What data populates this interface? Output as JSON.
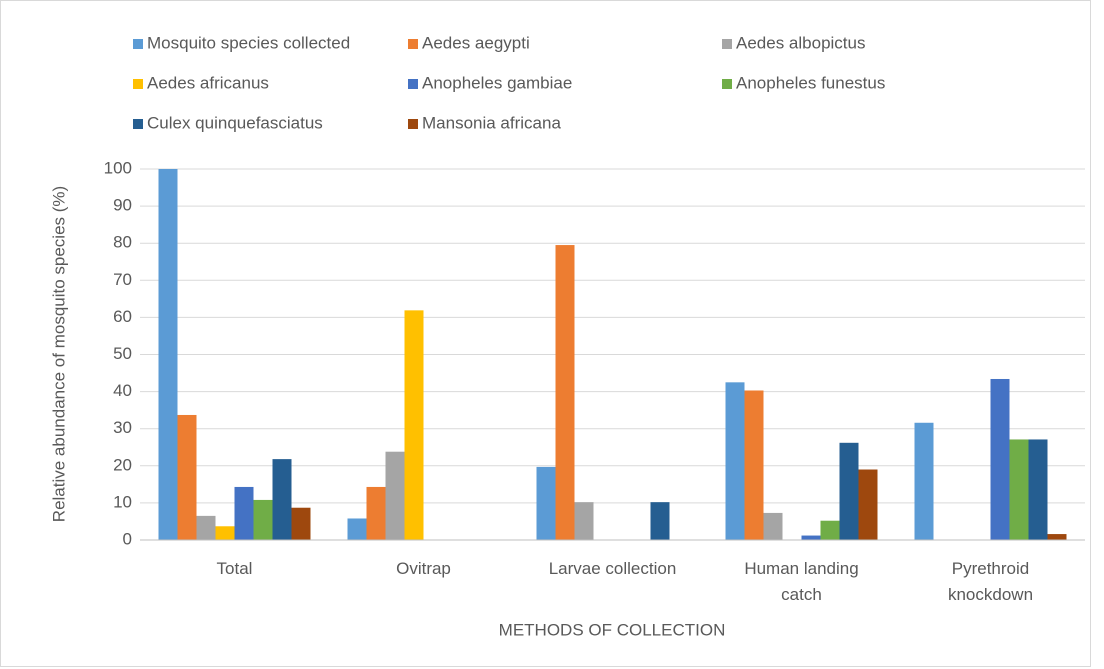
{
  "chart_data": {
    "type": "bar",
    "x_label": "METHODS OF COLLECTION",
    "y_label": "Relative abundance of mosquito species (%)",
    "categories": [
      "Total",
      "Ovitrap",
      "Larvae collection",
      "Human landing\ncatch",
      "Pyrethroid\nknockdown"
    ],
    "series": [
      {
        "name": "Mosquito species collected",
        "color": "#5b9bd5",
        "values": [
          100,
          5.8,
          19.7,
          42.5,
          31.6
        ]
      },
      {
        "name": "Aedes aegypti",
        "color": "#ed7d31",
        "values": [
          33.7,
          14.3,
          79.5,
          40.3,
          0
        ]
      },
      {
        "name": "Aedes albopictus",
        "color": "#a5a5a5",
        "values": [
          6.5,
          23.8,
          10.2,
          7.3,
          0
        ]
      },
      {
        "name": "Aedes africanus",
        "color": "#ffc000",
        "values": [
          3.7,
          61.9,
          0,
          0,
          0
        ]
      },
      {
        "name": "Anopheles gambiae",
        "color": "#4472c4",
        "values": [
          14.3,
          0,
          0,
          1.2,
          43.4
        ]
      },
      {
        "name": "Anopheles funestus",
        "color": "#70ad47",
        "values": [
          10.8,
          0,
          0,
          5.2,
          27.1
        ]
      },
      {
        "name": "Culex quinquefasciatus",
        "color": "#255e91",
        "values": [
          21.8,
          0,
          10.2,
          26.2,
          27.1
        ]
      },
      {
        "name": "Mansonia africana",
        "color": "#9e480e",
        "values": [
          8.7,
          0,
          0,
          19.0,
          1.6
        ]
      }
    ],
    "ylim": [
      0,
      100
    ],
    "yticks": [
      0,
      10,
      20,
      30,
      40,
      50,
      60,
      70,
      80,
      90,
      100
    ],
    "grid": true,
    "legend": "top"
  }
}
